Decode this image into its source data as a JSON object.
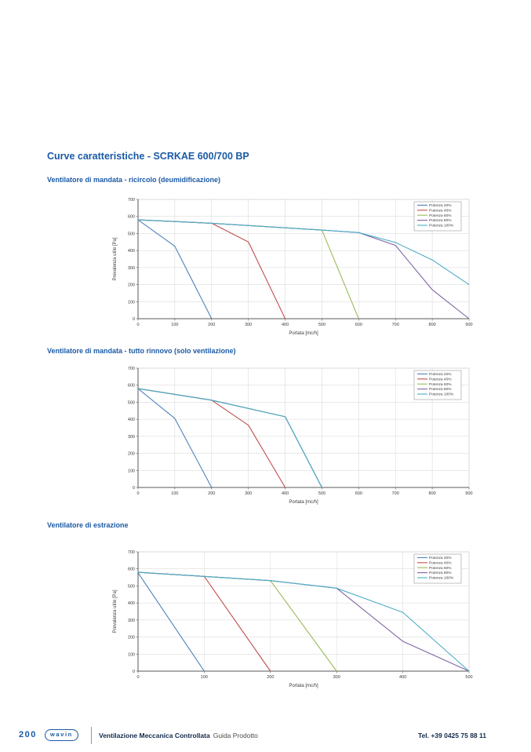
{
  "page": {
    "title": "Curve caratteristiche - SCRKAE 600/700 BP",
    "accent_color": "#1b5aa5"
  },
  "footer": {
    "page_number": "200",
    "logo_text": "wavin",
    "doc_title_bold": "Ventilazione Meccanica Controllata",
    "doc_title_regular": "Guida Prodotto",
    "phone": "Tel. +39 0425 75 88 11"
  },
  "chart_data": [
    {
      "type": "line",
      "section_title": "Ventilatore di mandata - ricircolo (deumidificazione)",
      "xlabel": "Portata [mc/h]",
      "ylabel": "Prevalenza utile [Pa]",
      "xlim": [
        0,
        900
      ],
      "ylim": [
        0,
        700
      ],
      "xtick_step": 100,
      "ytick_step": 100,
      "grid": true,
      "legend_position": "top-right",
      "series": [
        {
          "name": "Potenza 20%",
          "color": "#4f81bd",
          "points": [
            [
              0,
              580
            ],
            [
              100,
              425
            ],
            [
              200,
              0
            ]
          ]
        },
        {
          "name": "Potenza 40%",
          "color": "#c0504d",
          "points": [
            [
              0,
              580
            ],
            [
              200,
              560
            ],
            [
              300,
              450
            ],
            [
              400,
              0
            ]
          ]
        },
        {
          "name": "Potenza 60%",
          "color": "#9bbb59",
          "points": [
            [
              0,
              580
            ],
            [
              200,
              560
            ],
            [
              500,
              520
            ],
            [
              600,
              0
            ]
          ]
        },
        {
          "name": "Potenza 80%",
          "color": "#8064a2",
          "points": [
            [
              0,
              580
            ],
            [
              200,
              560
            ],
            [
              500,
              520
            ],
            [
              600,
              505
            ],
            [
              700,
              430
            ],
            [
              800,
              170
            ],
            [
              900,
              0
            ]
          ]
        },
        {
          "name": "Potenza 100%",
          "color": "#4bacc6",
          "points": [
            [
              0,
              580
            ],
            [
              200,
              560
            ],
            [
              500,
              520
            ],
            [
              600,
              505
            ],
            [
              700,
              447
            ],
            [
              800,
              345
            ],
            [
              900,
              200
            ]
          ]
        }
      ]
    },
    {
      "type": "line",
      "section_title": "Ventilatore di mandata - tutto rinnovo (solo ventilazione)",
      "xlabel": "Portata [mc/h]",
      "ylabel": "",
      "xlim": [
        0,
        900
      ],
      "ylim": [
        0,
        700
      ],
      "xtick_step": 100,
      "ytick_step": 100,
      "grid": true,
      "legend_position": "top-right",
      "series": [
        {
          "name": "Potenza 20%",
          "color": "#4f81bd",
          "points": [
            [
              0,
              580
            ],
            [
              100,
              405
            ],
            [
              200,
              0
            ]
          ]
        },
        {
          "name": "Potenza 40%",
          "color": "#c0504d",
          "points": [
            [
              0,
              580
            ],
            [
              200,
              512
            ],
            [
              300,
              365
            ],
            [
              400,
              0
            ]
          ]
        },
        {
          "name": "Potenza 60%",
          "color": "#9bbb59",
          "points": [
            [
              0,
              580
            ],
            [
              200,
              512
            ],
            [
              400,
              415
            ],
            [
              500,
              0
            ]
          ]
        },
        {
          "name": "Potenza 80%",
          "color": "#8064a2",
          "points": [
            [
              0,
              580
            ],
            [
              200,
              512
            ],
            [
              400,
              415
            ],
            [
              500,
              0
            ]
          ]
        },
        {
          "name": "Potenza 100%",
          "color": "#4bacc6",
          "points": [
            [
              0,
              580
            ],
            [
              200,
              512
            ],
            [
              400,
              415
            ],
            [
              500,
              0
            ]
          ]
        }
      ]
    },
    {
      "type": "line",
      "section_title": "Ventilatore di estrazione",
      "xlabel": "Portata [mc/h]",
      "ylabel": "Prevalenza utile [Pa]",
      "xlim": [
        0,
        500
      ],
      "ylim": [
        0,
        700
      ],
      "xtick_step": 100,
      "ytick_step": 100,
      "grid": true,
      "legend_position": "top-right",
      "series": [
        {
          "name": "Potenza 20%",
          "color": "#4f81bd",
          "points": [
            [
              0,
              577
            ],
            [
              100,
              0
            ]
          ]
        },
        {
          "name": "Potenza 40%",
          "color": "#c0504d",
          "points": [
            [
              0,
              580
            ],
            [
              100,
              556
            ],
            [
              200,
              0
            ]
          ]
        },
        {
          "name": "Potenza 60%",
          "color": "#9bbb59",
          "points": [
            [
              0,
              580
            ],
            [
              100,
              556
            ],
            [
              200,
              531
            ],
            [
              300,
              0
            ]
          ]
        },
        {
          "name": "Potenza 80%",
          "color": "#8064a2",
          "points": [
            [
              0,
              580
            ],
            [
              100,
              556
            ],
            [
              200,
              531
            ],
            [
              300,
              487
            ],
            [
              400,
              175
            ],
            [
              500,
              0
            ]
          ]
        },
        {
          "name": "Potenza 100%",
          "color": "#4bacc6",
          "points": [
            [
              0,
              580
            ],
            [
              100,
              556
            ],
            [
              200,
              531
            ],
            [
              300,
              487
            ],
            [
              400,
              345
            ],
            [
              500,
              0
            ]
          ]
        }
      ]
    }
  ]
}
